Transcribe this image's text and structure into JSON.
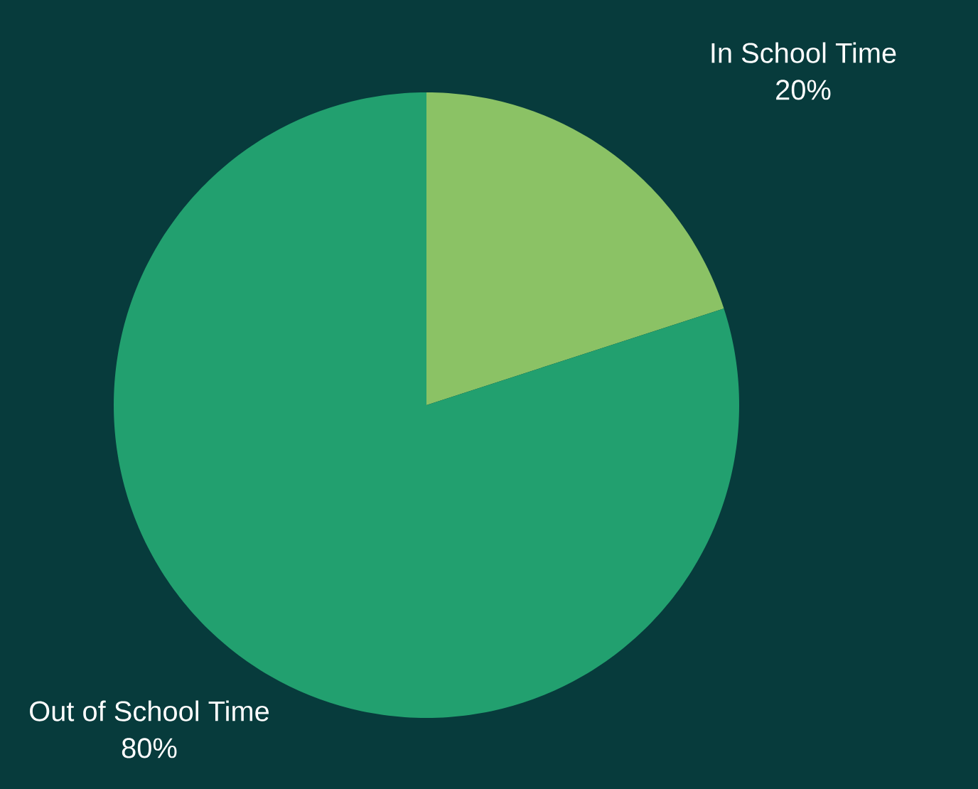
{
  "chart_data": {
    "type": "pie",
    "categories": [
      "In School Time",
      "Out of School Time"
    ],
    "values": [
      20,
      80
    ],
    "colors": [
      "#8bc265",
      "#22a06f"
    ],
    "value_labels": [
      "20%",
      "80%"
    ]
  }
}
